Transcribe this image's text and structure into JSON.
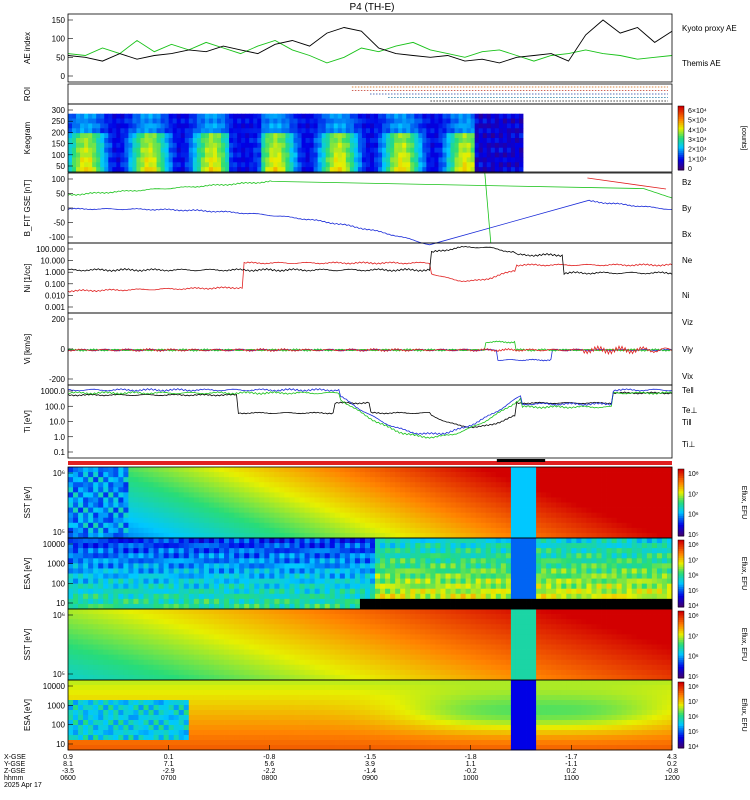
{
  "header": {
    "title": "P4 (TH-E)"
  },
  "colors": {
    "black": "#000000",
    "green": "#19c219",
    "red": "#e02020",
    "blue": "#1a2bd8"
  },
  "chart_data": [
    {
      "type": "line",
      "name": "ae",
      "ylabel": "AE index",
      "yticks": [
        "150",
        "100",
        "50",
        "0"
      ],
      "series": [
        {
          "name": "Kyoto proxy AE",
          "color": "#19c219",
          "y": [
            60,
            55,
            75,
            60,
            95,
            65,
            85,
            70,
            90,
            75,
            60,
            80,
            95,
            70,
            55,
            35,
            50,
            75,
            65,
            80,
            90,
            70,
            60,
            50,
            65,
            70,
            55,
            40,
            55,
            60,
            70,
            60,
            55,
            45,
            50,
            55
          ]
        },
        {
          "name": "Themis AE",
          "color": "#000000",
          "y": [
            55,
            50,
            40,
            60,
            45,
            55,
            60,
            70,
            65,
            80,
            70,
            60,
            85,
            95,
            80,
            115,
            130,
            120,
            75,
            60,
            55,
            50,
            55,
            40,
            45,
            35,
            50,
            55,
            60,
            40,
            110,
            150,
            115,
            130,
            90,
            120
          ]
        }
      ]
    },
    {
      "type": "table",
      "name": "roi",
      "ylabel": "ROI"
    },
    {
      "type": "heatmap",
      "name": "keogram",
      "ylabel": "Keogram",
      "yticks": [
        "300",
        "250",
        "200",
        "150",
        "100",
        "50"
      ],
      "colorbar": {
        "label": "[counts]",
        "ticks": [
          "6×10⁴",
          "5×10⁴",
          "4×10⁴",
          "3×10⁴",
          "2×10⁴",
          "1×10⁴",
          "0"
        ]
      }
    },
    {
      "type": "line",
      "name": "bfield",
      "ylabel": "B_FIT GSE [nT]",
      "yticks": [
        "100",
        "50",
        "0",
        "-50",
        "-100"
      ],
      "series": [
        {
          "name": "Bz",
          "color": "#e02020"
        },
        {
          "name": "By",
          "color": "#19c219"
        },
        {
          "name": "Bx",
          "color": "#1a2bd8"
        }
      ]
    },
    {
      "type": "line",
      "name": "density",
      "ylabel": "Ni [1/cc]",
      "yticks": [
        "100.000",
        "10.000",
        "1.000",
        "0.100",
        "0.010",
        "0.001"
      ],
      "series": [
        {
          "name": "Ne",
          "color": "#e02020"
        },
        {
          "name": "Ni",
          "color": "#000000"
        }
      ]
    },
    {
      "type": "line",
      "name": "velocity",
      "ylabel": "Vi [km/s]",
      "yticks": [
        "200",
        "0",
        "-200"
      ],
      "series": [
        {
          "name": "Viz",
          "color": "#e02020"
        },
        {
          "name": "Viy",
          "color": "#19c219"
        },
        {
          "name": "Vix",
          "color": "#1a2bd8"
        }
      ]
    },
    {
      "type": "line",
      "name": "temperature",
      "ylabel": "Ti [eV]",
      "yticks": [
        "1000.0",
        "100.0",
        "10.0",
        "1.0",
        "0.1"
      ],
      "series": [
        {
          "name": "Te‖",
          "color": "#000000"
        },
        {
          "name": "Te⊥",
          "color": "#e02020"
        },
        {
          "name": "Ti‖",
          "color": "#19c219"
        },
        {
          "name": "Ti⊥",
          "color": "#1a2bd8"
        }
      ]
    },
    {
      "type": "heatmap",
      "name": "sst_e",
      "ylabel": "SST [eV]",
      "yticks": [
        "10⁶",
        "10⁵"
      ],
      "colorbar": {
        "label": "Eflux, EFU",
        "ticks": [
          "10⁸",
          "10⁷",
          "10⁶",
          "10⁵"
        ]
      }
    },
    {
      "type": "heatmap",
      "name": "esa_e",
      "ylabel": "ESA [eV]",
      "yticks": [
        "10000",
        "1000",
        "100",
        "10"
      ],
      "colorbar": {
        "label": "Eflux, EFU",
        "ticks": [
          "10⁸",
          "10⁷",
          "10⁶",
          "10⁵",
          "10⁴"
        ]
      }
    },
    {
      "type": "heatmap",
      "name": "sst_i",
      "ylabel": "SST [eV]",
      "yticks": [
        "10⁶",
        "10⁵"
      ],
      "colorbar": {
        "label": "Eflux, EFU",
        "ticks": [
          "10⁸",
          "10⁷",
          "10⁶",
          "10⁵"
        ]
      }
    },
    {
      "type": "heatmap",
      "name": "esa_i",
      "ylabel": "ESA [eV]",
      "yticks": [
        "10000",
        "1000",
        "100",
        "10"
      ],
      "colorbar": {
        "label": "Eflux, EFU",
        "ticks": [
          "10⁸",
          "10⁷",
          "10⁶",
          "10⁵",
          "10⁴"
        ]
      }
    }
  ],
  "xaxis": {
    "rows": [
      {
        "label": "X-GSE",
        "values": [
          "0.9",
          "0.1",
          "-0.8",
          "-1.5",
          "-1.8",
          "-1.7",
          "4.3"
        ]
      },
      {
        "label": "Y-GSE",
        "values": [
          "8.1",
          "7.1",
          "5.6",
          "3.9",
          "1.1",
          "-1.1",
          "0.2"
        ]
      },
      {
        "label": "Z-GSE",
        "values": [
          "-3.5",
          "-2.9",
          "-2.2",
          "-1.4",
          "-0.2",
          "0.2",
          "-0.8"
        ]
      },
      {
        "label": "hhmm",
        "values": [
          "0600",
          "0700",
          "0800",
          "0900",
          "1000",
          "1100",
          "1200"
        ]
      }
    ],
    "date": "2025 Apr 17"
  }
}
